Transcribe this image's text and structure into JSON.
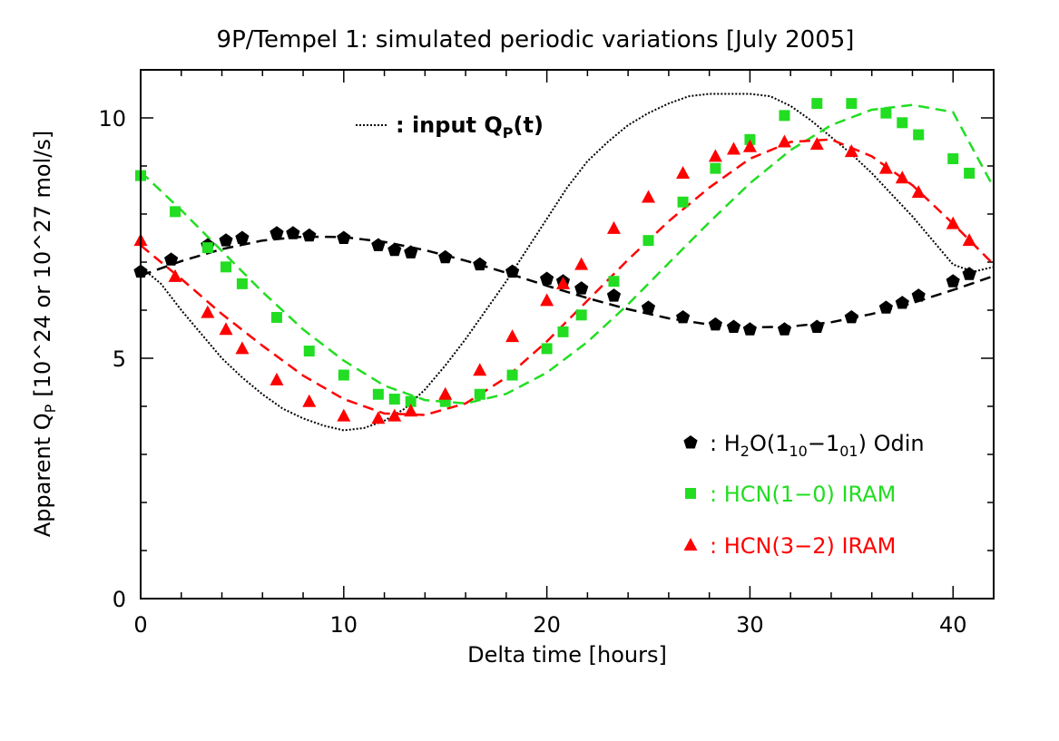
{
  "chart_data": {
    "type": "scatter",
    "title": "9P/Tempel 1: simulated periodic variations [July 2005]",
    "xlabel": "Delta time [hours]",
    "ylabel": "Apparent Q",
    "ylabel_sub": "P",
    "ylabel_unit": "[10^24 or 10^27 mol/s]",
    "xlim": [
      0,
      42
    ],
    "ylim": [
      0,
      11
    ],
    "xticks": [
      0,
      10,
      20,
      30,
      40
    ],
    "yticks": [
      0,
      5,
      10
    ],
    "input_curve": {
      "name": "input Q_P(t)",
      "legend_text": ": input Q",
      "legend_sub": "P",
      "legend_tail": "(t)",
      "color": "#000000",
      "style": "dotted",
      "x": [
        0,
        1,
        2,
        3,
        4,
        5,
        6,
        7,
        8,
        9,
        10,
        11,
        12,
        13,
        14,
        15,
        16,
        17,
        18,
        19,
        20,
        21,
        22,
        23,
        24,
        25,
        26,
        27,
        28,
        29,
        30,
        31,
        32,
        33,
        34,
        35,
        36,
        37,
        38,
        39,
        40,
        41,
        42
      ],
      "y": [
        6.9,
        6.55,
        6.0,
        5.5,
        5.0,
        4.6,
        4.25,
        3.95,
        3.75,
        3.6,
        3.5,
        3.55,
        3.7,
        3.95,
        4.35,
        4.85,
        5.4,
        6.0,
        6.6,
        7.25,
        7.9,
        8.55,
        9.1,
        9.5,
        9.85,
        10.1,
        10.3,
        10.45,
        10.5,
        10.5,
        10.5,
        10.45,
        10.25,
        9.95,
        9.6,
        9.25,
        8.85,
        8.4,
        7.95,
        7.45,
        6.95,
        6.8,
        6.9
      ]
    },
    "series": [
      {
        "name": "H2O(1_10-1_01) Odin",
        "legend_prefix": ": H",
        "legend_parts": [
          "2",
          "O(1",
          "10",
          "−1",
          "01",
          ") Odin"
        ],
        "color": "#000000",
        "marker": "pentagon",
        "x": [
          0,
          1.5,
          3.3,
          4.2,
          5.0,
          6.7,
          7.5,
          8.3,
          10,
          11.7,
          12.5,
          13.3,
          15,
          16.7,
          18.3,
          20,
          20.8,
          21.7,
          23.3,
          25,
          26.7,
          28.3,
          29.2,
          30,
          31.7,
          33.3,
          35,
          36.7,
          37.5,
          38.3,
          40,
          40.8
        ],
        "y": [
          6.8,
          7.05,
          7.35,
          7.45,
          7.5,
          7.6,
          7.6,
          7.55,
          7.5,
          7.35,
          7.25,
          7.2,
          7.1,
          6.95,
          6.8,
          6.65,
          6.6,
          6.45,
          6.3,
          6.05,
          5.85,
          5.7,
          5.65,
          5.6,
          5.6,
          5.65,
          5.85,
          6.05,
          6.15,
          6.3,
          6.6,
          6.75
        ],
        "fit_x": [
          0,
          2,
          4,
          6,
          8,
          10,
          12,
          14,
          16,
          18,
          20,
          22,
          24,
          26,
          28,
          30,
          32,
          34,
          36,
          38,
          40,
          42
        ],
        "fit_y": [
          6.72,
          7.02,
          7.27,
          7.45,
          7.53,
          7.52,
          7.42,
          7.25,
          7.03,
          6.78,
          6.51,
          6.25,
          6.02,
          5.83,
          5.7,
          5.64,
          5.66,
          5.75,
          5.92,
          6.15,
          6.42,
          6.71
        ]
      },
      {
        "name": "HCN(1-0) IRAM",
        "legend_text": ": HCN(1−0) IRAM",
        "color": "#22dd22",
        "marker": "square",
        "x": [
          0,
          1.7,
          3.3,
          4.2,
          5.0,
          6.7,
          8.3,
          10,
          11.7,
          12.5,
          13.3,
          15,
          16.7,
          18.3,
          20,
          20.8,
          21.7,
          23.3,
          25,
          26.7,
          28.3,
          30,
          31.7,
          33.3,
          35,
          36.7,
          37.5,
          38.3,
          40,
          40.8
        ],
        "y": [
          8.8,
          8.05,
          7.3,
          6.9,
          6.55,
          5.85,
          5.15,
          4.65,
          4.25,
          4.15,
          4.1,
          4.1,
          4.25,
          4.65,
          5.2,
          5.55,
          5.9,
          6.6,
          7.45,
          8.25,
          8.95,
          9.55,
          10.05,
          10.3,
          10.3,
          10.1,
          9.9,
          9.65,
          9.15,
          8.85
        ],
        "fit_x": [
          0,
          2,
          4,
          6,
          8,
          10,
          12,
          14,
          16,
          18,
          20,
          22,
          24,
          26,
          28,
          30,
          32,
          34,
          36,
          38,
          40,
          42
        ],
        "fit_y": [
          8.88,
          8.08,
          7.23,
          6.38,
          5.6,
          4.95,
          4.43,
          4.13,
          4.06,
          4.26,
          4.7,
          5.34,
          6.12,
          6.98,
          7.83,
          8.64,
          9.33,
          9.85,
          10.17,
          10.27,
          10.12,
          8.55
        ]
      },
      {
        "name": "HCN(3-2) IRAM",
        "legend_text": ": HCN(3−2) IRAM",
        "color": "#ff0000",
        "marker": "triangle",
        "x": [
          0,
          1.7,
          3.3,
          4.2,
          5.0,
          6.7,
          8.3,
          10,
          11.7,
          12.5,
          13.3,
          15,
          16.7,
          18.3,
          20,
          20.8,
          21.7,
          23.3,
          25,
          26.7,
          28.3,
          29.2,
          30,
          31.7,
          33.3,
          35,
          36.7,
          37.5,
          38.3,
          40,
          40.8
        ],
        "y": [
          7.45,
          6.7,
          5.95,
          5.6,
          5.2,
          4.55,
          4.1,
          3.8,
          3.75,
          3.8,
          3.9,
          4.25,
          4.75,
          5.45,
          6.2,
          6.55,
          6.95,
          7.7,
          8.35,
          8.85,
          9.2,
          9.35,
          9.4,
          9.5,
          9.45,
          9.3,
          8.95,
          8.75,
          8.45,
          7.8,
          7.45
        ],
        "fit_x": [
          0,
          2,
          4,
          6,
          8,
          10,
          12,
          14,
          16,
          18,
          20,
          22,
          24,
          26,
          28,
          30,
          32,
          34,
          36,
          38,
          40,
          42
        ],
        "fit_y": [
          7.35,
          6.65,
          5.92,
          5.26,
          4.64,
          4.15,
          3.85,
          3.82,
          4.06,
          4.6,
          5.35,
          6.2,
          7.05,
          7.85,
          8.55,
          9.15,
          9.5,
          9.55,
          9.2,
          8.6,
          7.8,
          6.95
        ]
      }
    ]
  }
}
